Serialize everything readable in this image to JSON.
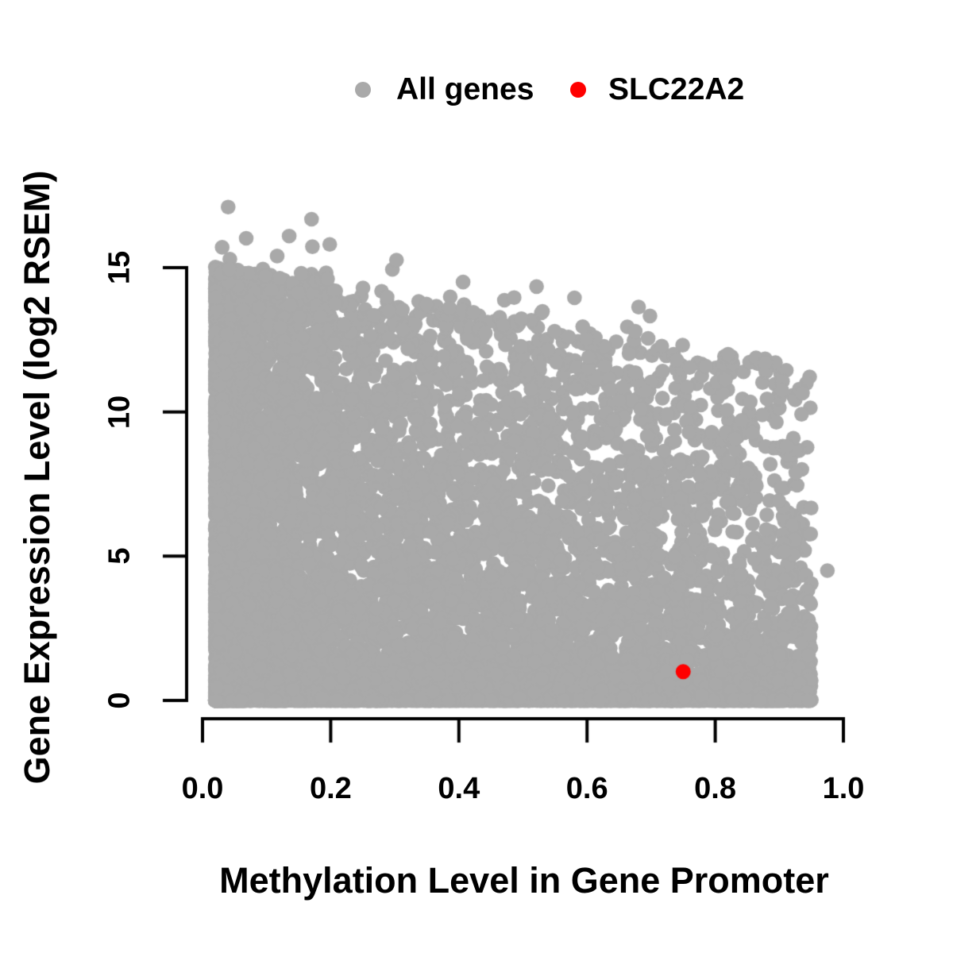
{
  "chart_data": {
    "type": "scatter",
    "title": "",
    "xlabel": "Methylation Level in Gene Promoter",
    "ylabel": "Gene Expression Level (log2 RSEM)",
    "xlim": [
      0,
      1
    ],
    "ylim": [
      0,
      15
    ],
    "x_ticks": [
      0,
      0.2,
      0.4,
      0.6,
      0.8,
      1.0
    ],
    "x_tick_labels": [
      "0.0",
      "0.2",
      "0.4",
      "0.6",
      "0.8",
      "1.0"
    ],
    "y_ticks": [
      0,
      5,
      10,
      15
    ],
    "y_tick_labels": [
      "0",
      "5",
      "10",
      "15"
    ],
    "grid": false,
    "legend_position": "top-center",
    "background_color": "#ffffff",
    "axis_color": "#000000",
    "legend": {
      "items": [
        {
          "label": "All genes",
          "color": "#A9A9A9"
        },
        {
          "label": "SLC22A2",
          "color": "#FF0000"
        }
      ]
    },
    "series": [
      {
        "name": "All genes",
        "color": "#A9A9A9",
        "marker": "filled-circle",
        "marker_radius_px": 9.3,
        "n_points_approx": 8300,
        "x_range_observed": [
          0.02,
          0.98
        ],
        "y_range_observed": [
          0,
          17.1
        ],
        "upper_envelope": {
          "intercept": 15.1,
          "slope": -3.9
        },
        "description": "Dense cloud of all genes: expression 0 to ~15 at low promoter methylation; upper envelope declines to ~11.5 near methylation 0.95; heavy overplotting at low methylation and along the zero-expression floor; sparse outliers up to ~17.",
        "point_cloud": {
          "seed": 20240613,
          "n": 8200,
          "x_min": 0.02,
          "x_max": 0.95,
          "x_mix": [
            {
              "w": 0.55,
              "exp": 2.3
            },
            {
              "w": 0.45,
              "exp": 1.0
            }
          ],
          "y_pow_base": 1.0,
          "y_pow_slope": 2.2,
          "floor_frac": 0.15,
          "floor_zero_frac": 0.5,
          "floor_max": 1.2,
          "floor_pow": 2.2,
          "outliers": {
            "n": 58,
            "x_min": 0.03,
            "x_range": 0.87,
            "x_pow": 1.6,
            "max_extra": 2.3,
            "y_pow": 2.8
          },
          "max_point": [
            0.04,
            17.1
          ],
          "far_right_point": [
            0.975,
            4.5
          ]
        }
      },
      {
        "name": "SLC22A2",
        "color": "#FF0000",
        "marker": "filled-circle",
        "marker_radius_px": 9.5,
        "points": [
          [
            0.75,
            1.0
          ]
        ]
      }
    ]
  }
}
